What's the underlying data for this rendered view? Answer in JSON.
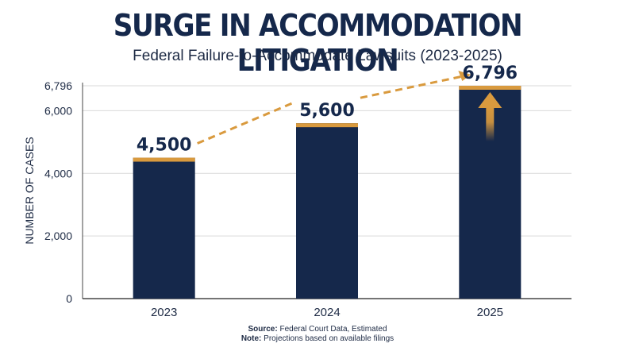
{
  "header": {
    "title": "SURGE IN ACCOMMODATION LITIGATION",
    "subtitle": "Federal Failure-to-Accommodate Lawsuits (2023-2025)"
  },
  "chart_data": {
    "type": "bar",
    "categories": [
      "2023",
      "2024",
      "2025"
    ],
    "values": [
      4500,
      5600,
      6796
    ],
    "data_labels": [
      "4,500",
      "5,600",
      "6,796"
    ],
    "ylabel": "NUMBER OF CASES",
    "ylim": [
      0,
      6796
    ],
    "yticks": [
      0,
      2000,
      4000,
      6000,
      6796
    ],
    "ytick_labels": [
      "0",
      "2,000",
      "4,000",
      "6,000",
      "6,796"
    ],
    "grid": true,
    "annotations": [
      "dashed trend arrow 2023 to 2025",
      "upward arrow on 2025 bar"
    ]
  },
  "footer": {
    "source_label": "Source:",
    "source_text": " Federal Court Data, Estimated",
    "note_label": "Note:",
    "note_text": " Projections based on available filings"
  },
  "colors": {
    "bar": "#15284b",
    "accent": "#d99a3e",
    "title": "#15284b",
    "grid": "#d9d9d9"
  }
}
